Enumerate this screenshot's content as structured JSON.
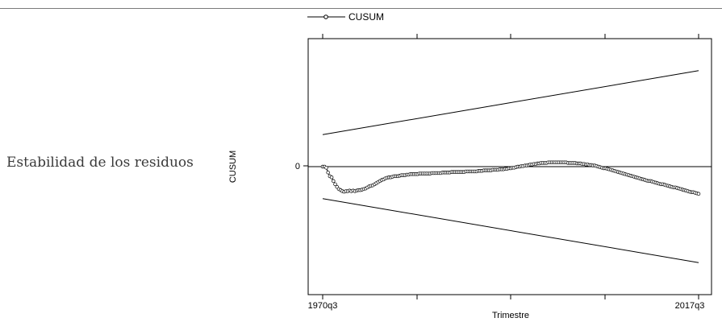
{
  "side_label": "Estabilidad de los residuos",
  "chart_data": {
    "type": "line",
    "title": "",
    "xlabel": "Trimestre",
    "ylabel": "CUSUM",
    "x_range": [
      "1970q3",
      "2017q3"
    ],
    "x_tick_labels": [
      "1970q3",
      "2017q3"
    ],
    "y_tick_labels": [
      "0"
    ],
    "ylim": [
      -2.4,
      2.4
    ],
    "grid": false,
    "legend": "top-left",
    "series": [
      {
        "name": "CUSUM",
        "marker": "circle",
        "values": [
          0,
          0,
          -0.02,
          -0.11,
          -0.18,
          -0.2,
          -0.27,
          -0.33,
          -0.38,
          -0.42,
          -0.44,
          -0.46,
          -0.47,
          -0.46,
          -0.46,
          -0.45,
          -0.46,
          -0.45,
          -0.46,
          -0.45,
          -0.44,
          -0.44,
          -0.43,
          -0.42,
          -0.41,
          -0.39,
          -0.37,
          -0.36,
          -0.35,
          -0.33,
          -0.31,
          -0.29,
          -0.27,
          -0.25,
          -0.24,
          -0.22,
          -0.21,
          -0.2,
          -0.2,
          -0.19,
          -0.18,
          -0.18,
          -0.18,
          -0.17,
          -0.16,
          -0.16,
          -0.16,
          -0.15,
          -0.15,
          -0.14,
          -0.14,
          -0.14,
          -0.14,
          -0.14,
          -0.13,
          -0.13,
          -0.13,
          -0.13,
          -0.13,
          -0.13,
          -0.13,
          -0.12,
          -0.12,
          -0.12,
          -0.12,
          -0.12,
          -0.12,
          -0.11,
          -0.11,
          -0.11,
          -0.11,
          -0.11,
          -0.1,
          -0.1,
          -0.1,
          -0.1,
          -0.1,
          -0.1,
          -0.1,
          -0.1,
          -0.09,
          -0.09,
          -0.09,
          -0.09,
          -0.09,
          -0.09,
          -0.09,
          -0.08,
          -0.08,
          -0.08,
          -0.07,
          -0.07,
          -0.07,
          -0.07,
          -0.07,
          -0.06,
          -0.06,
          -0.06,
          -0.06,
          -0.05,
          -0.05,
          -0.05,
          -0.04,
          -0.04,
          -0.03,
          -0.03,
          -0.02,
          -0.02,
          -0.01,
          0,
          0,
          0.01,
          0.01,
          0.02,
          0.02,
          0.03,
          0.04,
          0.04,
          0.05,
          0.05,
          0.06,
          0.06,
          0.07,
          0.07,
          0.07,
          0.07,
          0.08,
          0.08,
          0.08,
          0.08,
          0.08,
          0.08,
          0.08,
          0.08,
          0.08,
          0.08,
          0.08,
          0.07,
          0.07,
          0.07,
          0.07,
          0.07,
          0.06,
          0.06,
          0.06,
          0.05,
          0.05,
          0.04,
          0.04,
          0.03,
          0.03,
          0.02,
          0.02,
          0.01,
          0,
          -0.01,
          -0.02,
          -0.03,
          -0.03,
          -0.04,
          -0.05,
          -0.06,
          -0.07,
          -0.08,
          -0.09,
          -0.1,
          -0.11,
          -0.12,
          -0.13,
          -0.14,
          -0.15,
          -0.16,
          -0.17,
          -0.18,
          -0.19,
          -0.2,
          -0.21,
          -0.22,
          -0.23,
          -0.24,
          -0.25,
          -0.26,
          -0.27,
          -0.27,
          -0.28,
          -0.29,
          -0.3,
          -0.31,
          -0.32,
          -0.33,
          -0.33,
          -0.34,
          -0.35,
          -0.36,
          -0.37,
          -0.38,
          -0.39,
          -0.39,
          -0.4,
          -0.41,
          -0.42,
          -0.43,
          -0.44,
          -0.45,
          -0.46,
          -0.47,
          -0.48,
          -0.48,
          -0.49,
          -0.5,
          -0.51
        ]
      },
      {
        "name": "",
        "values": [
          0.6,
          1.8
        ]
      },
      {
        "name": "",
        "values": [
          -0.6,
          -1.8
        ]
      }
    ],
    "reference_line_y": 0
  }
}
